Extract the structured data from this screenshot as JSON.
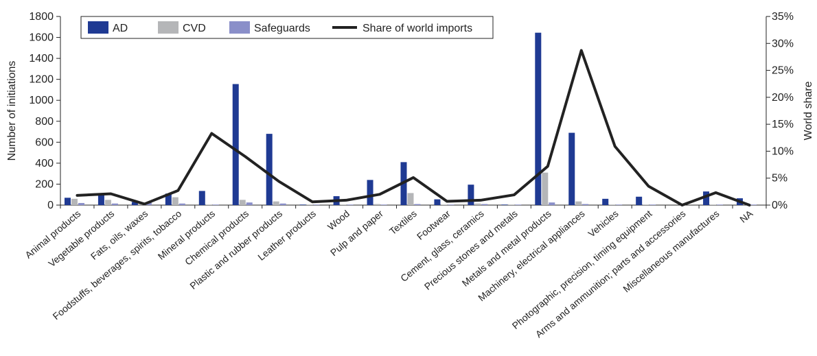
{
  "chart_data": {
    "type": "bar",
    "categories": [
      "Animal products",
      "Vegetable products",
      "Fats, oils, waxes",
      "Foodstuffs, beverages, spirits, tobacco",
      "Mineral products",
      "Chemical products",
      "Plastic and rubber products",
      "Leather products",
      "Wood",
      "Pulp and paper",
      "Textiles",
      "Footwear",
      "Cement, glass, ceramics",
      "Precious stones and metals",
      "Metals and metal products",
      "Machinery, electrical appliances",
      "Vehicles",
      "Photographic, precision, timing equipment",
      "Arms and ammunition; parts and accessories",
      "Miscellaneous manufactures",
      "NA"
    ],
    "series": [
      {
        "name": "AD",
        "axis": "left",
        "color": "#1f3a93",
        "values": [
          70,
          100,
          30,
          110,
          135,
          1155,
          680,
          5,
          85,
          240,
          410,
          55,
          195,
          5,
          1645,
          690,
          60,
          80,
          0,
          130,
          65
        ]
      },
      {
        "name": "CVD",
        "axis": "left",
        "color": "#b5b6b8",
        "values": [
          60,
          50,
          10,
          75,
          5,
          50,
          35,
          5,
          5,
          10,
          115,
          5,
          15,
          5,
          310,
          35,
          5,
          5,
          0,
          5,
          5
        ]
      },
      {
        "name": "Safeguards",
        "axis": "left",
        "color": "#8a8fc9",
        "values": [
          20,
          15,
          25,
          15,
          5,
          25,
          15,
          5,
          5,
          5,
          10,
          5,
          10,
          5,
          25,
          10,
          5,
          5,
          0,
          5,
          5
        ]
      },
      {
        "name": "Share of world imports",
        "axis": "right",
        "type": "line",
        "color": "#222222",
        "values": [
          1.8,
          2.1,
          0.2,
          2.7,
          13.3,
          9.0,
          4.4,
          0.6,
          0.9,
          2.0,
          5.1,
          0.7,
          0.9,
          1.9,
          7.2,
          28.7,
          10.9,
          3.5,
          0.0,
          2.3,
          0.0
        ]
      }
    ],
    "yaxis_left": {
      "label": "Number of initiations",
      "ylim": [
        0,
        1800
      ],
      "ticks": [
        "0",
        "200",
        "400",
        "600",
        "800",
        "1000",
        "1200",
        "1400",
        "1600",
        "1800"
      ]
    },
    "yaxis_right": {
      "label": "World share",
      "ylim": [
        0,
        35
      ],
      "ticks": [
        "0%",
        "5%",
        "10%",
        "15%",
        "20%",
        "25%",
        "30%",
        "35%"
      ]
    },
    "grid": false,
    "legend_position": "top-left"
  }
}
